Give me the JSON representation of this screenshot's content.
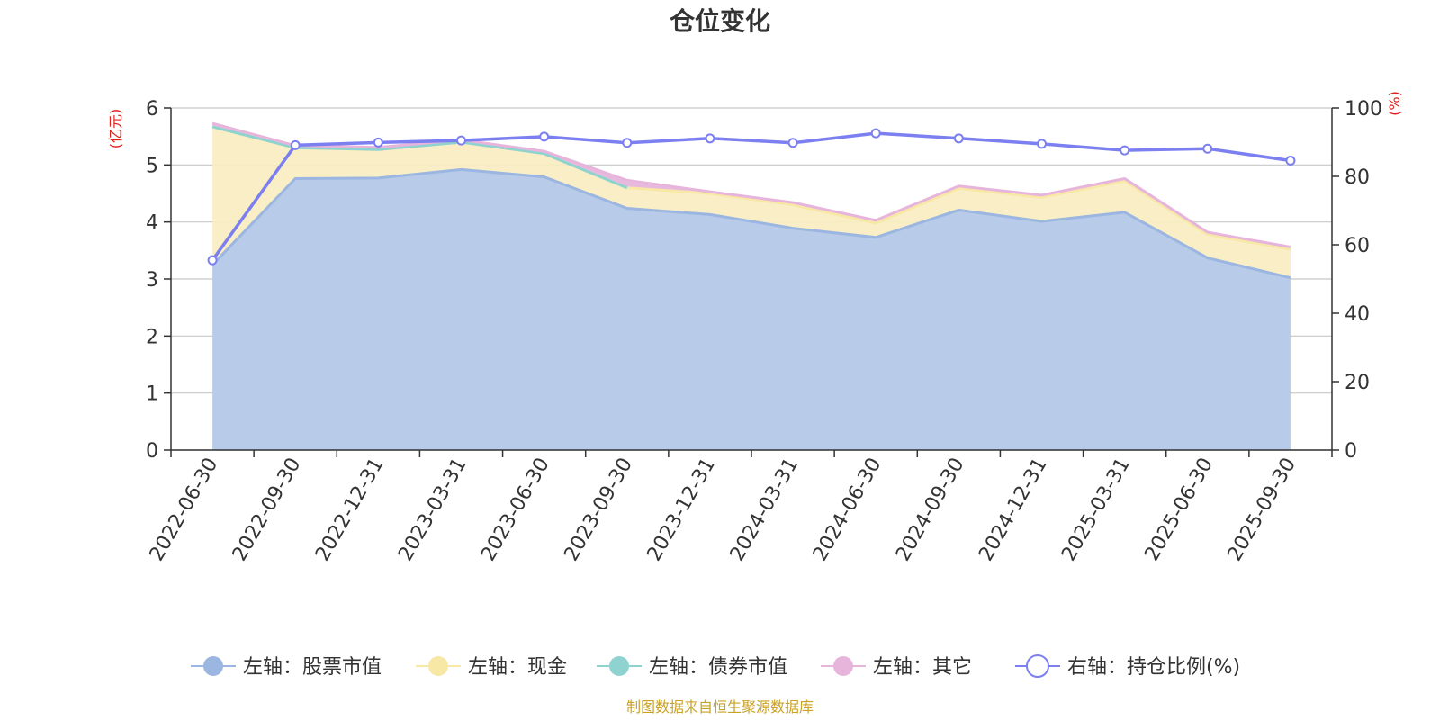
{
  "chart_data": {
    "type": "area",
    "title": "仓位变化",
    "left_unit": "(亿元)",
    "right_unit": "(%)",
    "categories": [
      "2022-06-30",
      "2022-09-30",
      "2022-12-31",
      "2023-03-31",
      "2023-06-30",
      "2023-09-30",
      "2023-12-31",
      "2024-03-31",
      "2024-06-30",
      "2024-09-30",
      "2024-12-31",
      "2025-03-31",
      "2025-06-30",
      "2025-09-30"
    ],
    "left_ylim": [
      0,
      6
    ],
    "left_ticks": [
      "0",
      "1",
      "2",
      "3",
      "4",
      "5",
      "6"
    ],
    "right_ylim": [
      0,
      100
    ],
    "right_ticks": [
      "0",
      "20",
      "40",
      "60",
      "80",
      "100"
    ],
    "grid": true,
    "legend_position": "bottom",
    "series": [
      {
        "name": "左轴：股票市值",
        "axis": "left",
        "stack": true,
        "color": "#9bb6e0",
        "fill": "#b8cbe9",
        "values": [
          3.25,
          4.76,
          4.77,
          4.92,
          4.79,
          4.24,
          4.13,
          3.89,
          3.73,
          4.21,
          4.01,
          4.17,
          3.37,
          3.02
        ]
      },
      {
        "name": "左轴：现金",
        "axis": "left",
        "stack": true,
        "color": "#f8e8a6",
        "fill": "#f9edc2",
        "values": [
          2.42,
          0.54,
          0.5,
          0.48,
          0.41,
          0.36,
          0.37,
          0.41,
          0.25,
          0.38,
          0.42,
          0.55,
          0.41,
          0.5
        ]
      },
      {
        "name": "左轴：债券市值",
        "axis": "left",
        "stack": true,
        "color": "#8fd3d0",
        "fill": "#8fd3d0",
        "values": [
          0,
          0,
          0,
          0,
          0,
          0,
          null,
          null,
          null,
          null,
          null,
          null,
          null,
          null
        ]
      },
      {
        "name": "左轴：其它",
        "axis": "left",
        "stack": true,
        "color": "#e7b5dc",
        "fill": "#e7b5dc",
        "values": [
          0.06,
          0.04,
          0.04,
          0.04,
          0.04,
          0.13,
          0.03,
          0.04,
          0.05,
          0.04,
          0.04,
          0.04,
          0.04,
          0.04
        ]
      },
      {
        "name": "右轴：持仓比例(%)",
        "axis": "right",
        "stack": false,
        "color": "#7b7ff0",
        "values": [
          55.5,
          89.1,
          89.9,
          90.5,
          91.6,
          89.8,
          91.1,
          89.8,
          92.6,
          91.1,
          89.5,
          87.6,
          88.1,
          84.6
        ]
      }
    ],
    "source": "制图数据来自恒生聚源数据库"
  }
}
